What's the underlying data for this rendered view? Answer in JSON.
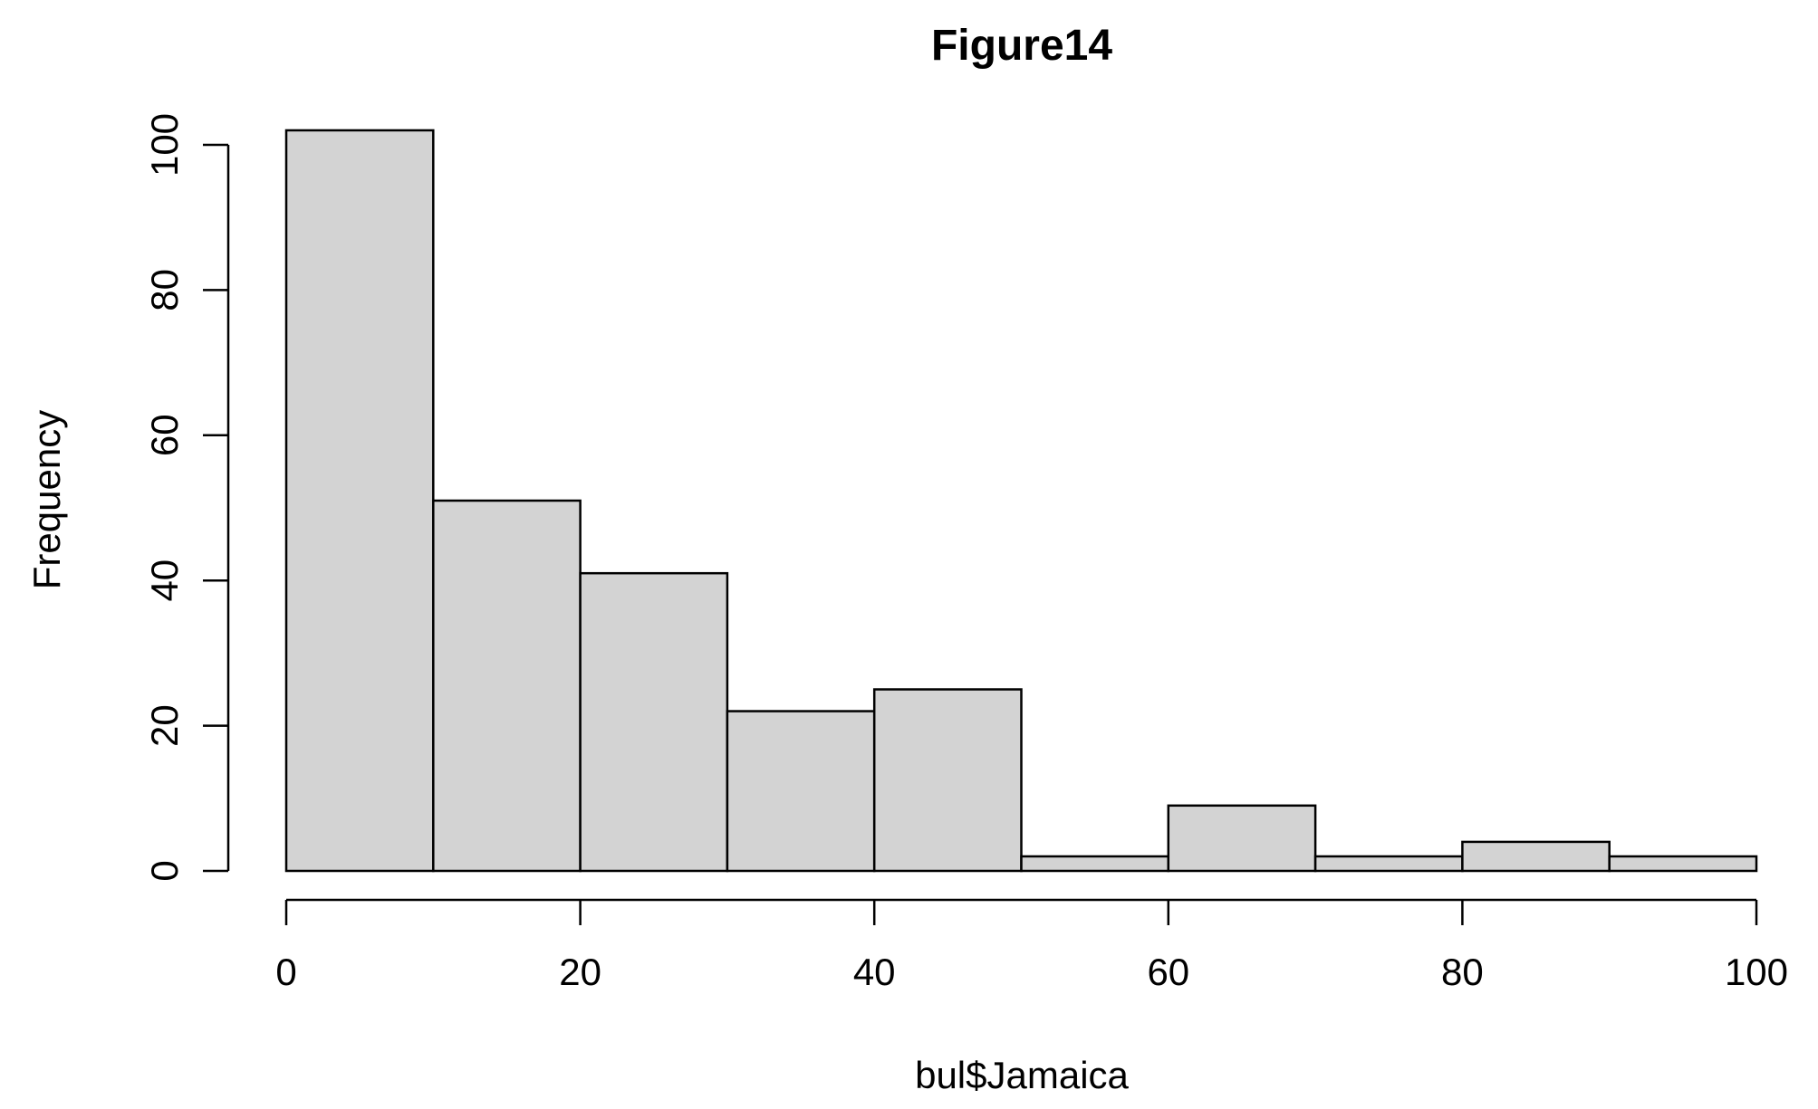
{
  "chart_data": {
    "type": "bar",
    "title": "Figure14",
    "xlabel": "bul$Jamaica",
    "ylabel": "Frequency",
    "bins": [
      {
        "from": 0,
        "to": 10,
        "count": 102
      },
      {
        "from": 10,
        "to": 20,
        "count": 51
      },
      {
        "from": 20,
        "to": 30,
        "count": 41
      },
      {
        "from": 30,
        "to": 40,
        "count": 22
      },
      {
        "from": 40,
        "to": 50,
        "count": 25
      },
      {
        "from": 50,
        "to": 60,
        "count": 2
      },
      {
        "from": 60,
        "to": 70,
        "count": 9
      },
      {
        "from": 70,
        "to": 80,
        "count": 2
      },
      {
        "from": 80,
        "to": 90,
        "count": 4
      },
      {
        "from": 90,
        "to": 100,
        "count": 2
      }
    ],
    "xlim": [
      0,
      100
    ],
    "ylim": [
      0,
      100
    ],
    "x_ticks": [
      0,
      20,
      40,
      60,
      80,
      100
    ],
    "y_ticks": [
      0,
      20,
      40,
      60,
      80,
      100
    ],
    "x_tick_labels": [
      "0",
      "20",
      "40",
      "60",
      "80",
      "100"
    ],
    "y_tick_labels": [
      "0",
      "20",
      "40",
      "60",
      "80",
      "100"
    ],
    "grid": false,
    "bar_fill": "#d3d3d3",
    "bar_stroke": "#000000"
  }
}
